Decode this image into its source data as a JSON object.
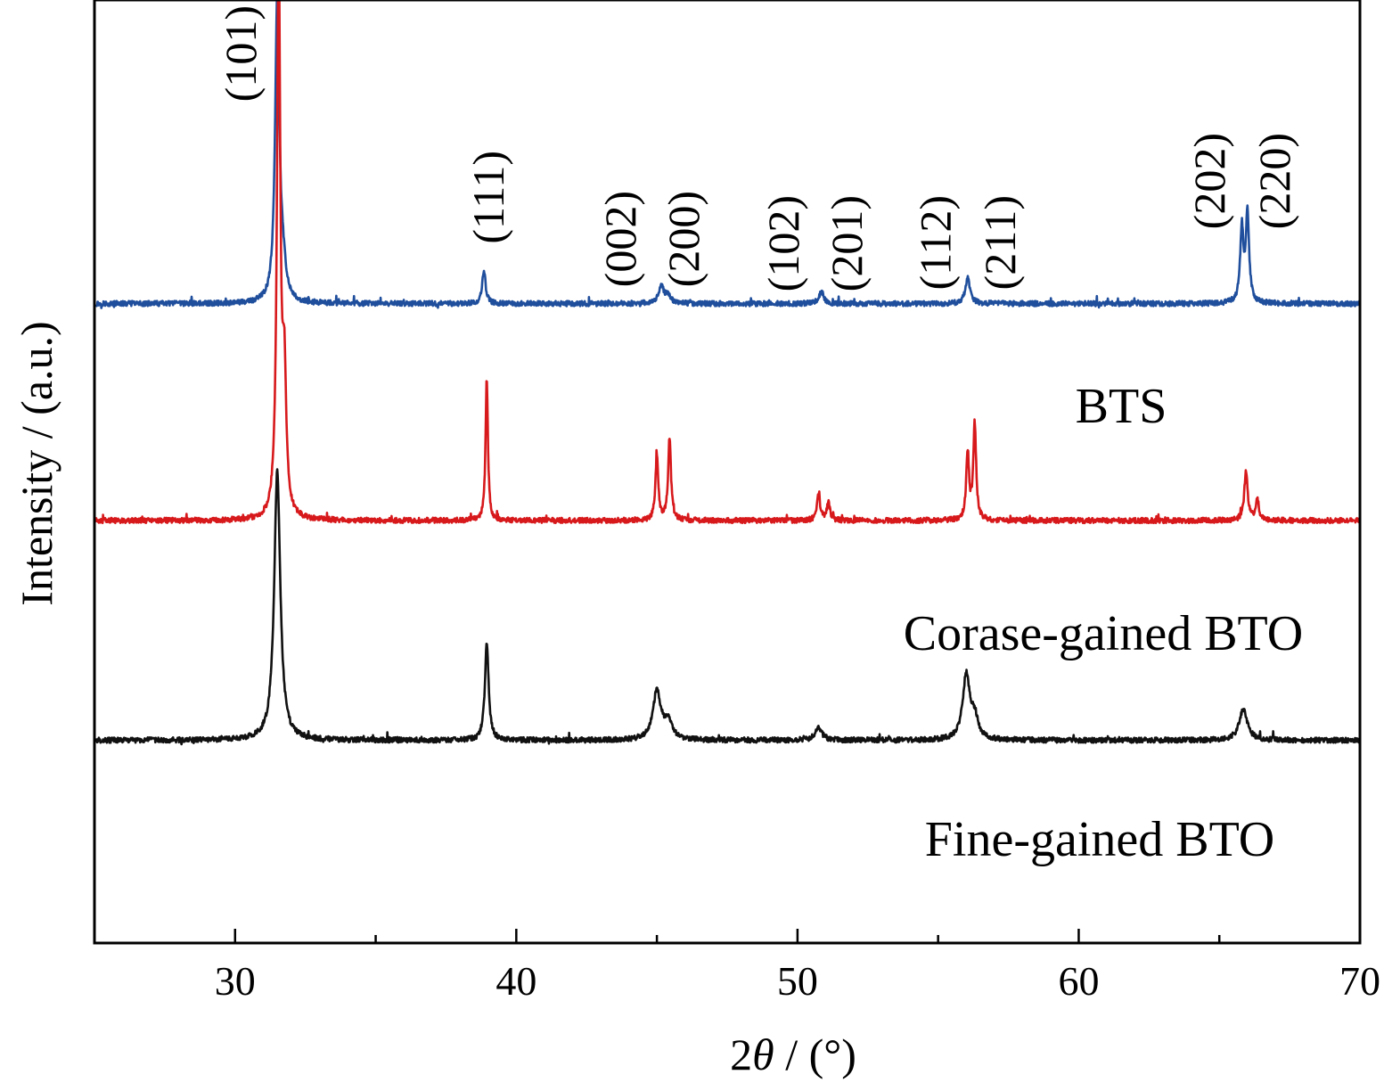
{
  "chart_data": {
    "type": "line",
    "title": "",
    "xlabel_prefix": "2",
    "xlabel_symbol": "θ",
    "xlabel_suffix": " / (°)",
    "ylabel": "Intensity / (a.u.)",
    "xlim": [
      25,
      70
    ],
    "ylim": [
      0,
      100
    ],
    "x_ticks": [
      30,
      40,
      50,
      60,
      70
    ],
    "x_minor_ticks": [
      35,
      45,
      55,
      65
    ],
    "y_ticks_shown": false,
    "grid": false,
    "legend": "none (series labelled directly under each trace)",
    "series": [
      {
        "name": "BTS",
        "color": "#1f4e9c",
        "baseline": 67.8,
        "peaks": [
          {
            "x": 31.5,
            "h": 32.5,
            "w": 0.09
          },
          {
            "x": 31.7,
            "h": 3.0,
            "w": 0.12
          },
          {
            "x": 38.85,
            "h": 3.6,
            "w": 0.07
          },
          {
            "x": 45.15,
            "h": 1.8,
            "w": 0.12
          },
          {
            "x": 45.4,
            "h": 0.8,
            "w": 0.12
          },
          {
            "x": 50.85,
            "h": 1.3,
            "w": 0.1
          },
          {
            "x": 56.05,
            "h": 2.8,
            "w": 0.1
          },
          {
            "x": 65.8,
            "h": 7.8,
            "w": 0.07
          },
          {
            "x": 66.0,
            "h": 9.4,
            "w": 0.07
          }
        ]
      },
      {
        "name": "Corase-gained BTO",
        "color": "#d7191c",
        "baseline": 44.8,
        "peaks": [
          {
            "x": 31.55,
            "h": 60.0,
            "w": 0.07
          },
          {
            "x": 31.75,
            "h": 14.0,
            "w": 0.08
          },
          {
            "x": 38.95,
            "h": 15.1,
            "w": 0.05
          },
          {
            "x": 45.0,
            "h": 7.0,
            "w": 0.06
          },
          {
            "x": 45.45,
            "h": 8.8,
            "w": 0.06
          },
          {
            "x": 50.75,
            "h": 2.6,
            "w": 0.07
          },
          {
            "x": 51.1,
            "h": 1.8,
            "w": 0.07
          },
          {
            "x": 56.05,
            "h": 7.2,
            "w": 0.06
          },
          {
            "x": 56.3,
            "h": 10.2,
            "w": 0.06
          },
          {
            "x": 65.95,
            "h": 5.3,
            "w": 0.07
          },
          {
            "x": 66.35,
            "h": 2.2,
            "w": 0.07
          }
        ]
      },
      {
        "name": "Fine-gained BTO",
        "color": "#111111",
        "baseline": 21.5,
        "peaks": [
          {
            "x": 31.5,
            "h": 28.5,
            "w": 0.13
          },
          {
            "x": 38.95,
            "h": 10.3,
            "w": 0.08
          },
          {
            "x": 45.0,
            "h": 5.2,
            "w": 0.17
          },
          {
            "x": 45.4,
            "h": 1.8,
            "w": 0.17
          },
          {
            "x": 50.75,
            "h": 1.4,
            "w": 0.14
          },
          {
            "x": 56.0,
            "h": 6.8,
            "w": 0.15
          },
          {
            "x": 56.3,
            "h": 2.2,
            "w": 0.15
          },
          {
            "x": 65.85,
            "h": 3.3,
            "w": 0.17
          }
        ]
      }
    ],
    "peak_labels": [
      {
        "text": "(101)",
        "x": 30.2
      },
      {
        "text": "(111)",
        "x": 39.0
      },
      {
        "text": "(002)",
        "x": 43.7
      },
      {
        "text": "(200)",
        "x": 45.95
      },
      {
        "text": "(102)",
        "x": 49.5
      },
      {
        "text": "(201)",
        "x": 51.75
      },
      {
        "text": "(112)",
        "x": 54.9
      },
      {
        "text": "(211)",
        "x": 57.2
      },
      {
        "text": "(202)",
        "x": 64.65
      },
      {
        "text": "(220)",
        "x": 66.95
      }
    ]
  }
}
